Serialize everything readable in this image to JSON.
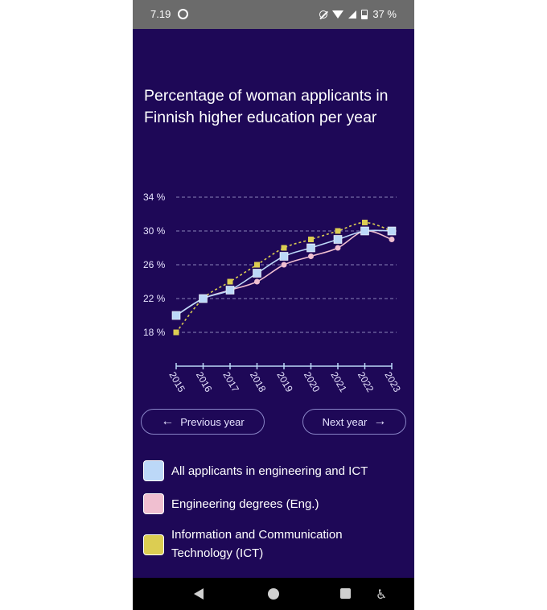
{
  "status_bar": {
    "time": "7.19",
    "battery": "37 %"
  },
  "title": "Percentage of woman applicants in Finnish higher education per year",
  "chart_data": {
    "type": "line",
    "x": [
      "2015",
      "2016",
      "2017",
      "2018",
      "2019",
      "2020",
      "2021",
      "2022",
      "2023"
    ],
    "ylim": [
      18,
      34
    ],
    "yticks": [
      "18 %",
      "22 %",
      "26 %",
      "30 %",
      "34 %"
    ],
    "ytick_values": [
      18,
      22,
      26,
      30,
      34
    ],
    "grid": true,
    "series": [
      {
        "key": "ict",
        "name": "Information and Communication Technology (ICT)",
        "color": "#dccd52",
        "values": [
          18,
          22,
          24,
          26,
          28,
          29,
          30,
          31,
          30
        ]
      },
      {
        "key": "eng",
        "name": "Engineering degrees (Eng.)",
        "color": "#f0bfd0",
        "values": [
          20,
          22,
          23,
          24,
          26,
          27,
          28,
          30,
          29
        ]
      },
      {
        "key": "all",
        "name": "All applicants in engineering and ICT",
        "color": "#bcd8f8",
        "values": [
          20,
          22,
          23,
          25,
          27,
          28,
          29,
          30,
          30
        ]
      }
    ]
  },
  "buttons": {
    "previous": "Previous year",
    "next": "Next year"
  },
  "legend": [
    {
      "label": "All applicants in engineering and ICT",
      "color": "#bcd8f8"
    },
    {
      "label": "Engineering degrees (Eng.)",
      "color": "#f0bfd0"
    },
    {
      "label": "Information and Communication Technology (ICT)",
      "color": "#dccd52"
    }
  ]
}
